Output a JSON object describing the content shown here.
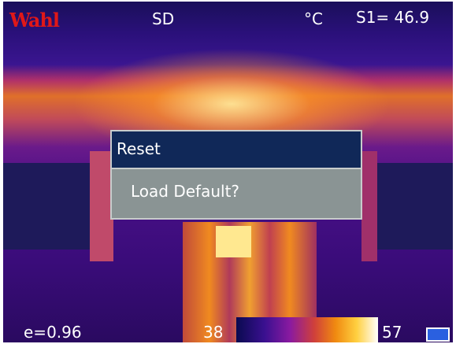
{
  "header": {
    "brand": "Wahl",
    "storage": "SD",
    "unit": "°C",
    "spot": "S1= 46.9"
  },
  "dialog": {
    "title": "Reset",
    "message": "Load Default?"
  },
  "footer": {
    "emissivity": "e=0.96",
    "scale_min": "38",
    "scale_max": "57"
  }
}
